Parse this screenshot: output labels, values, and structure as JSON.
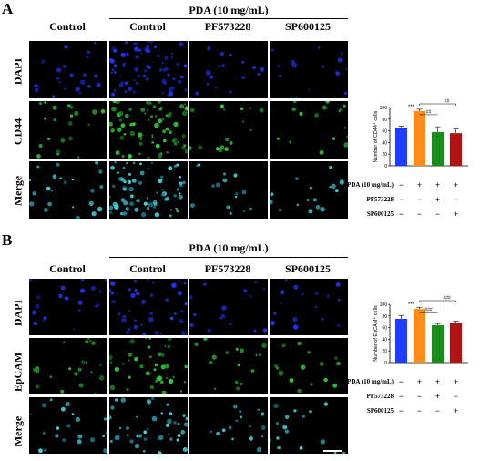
{
  "panels": [
    {
      "letter": "A",
      "group_title": "PDA (10 mg/mL)",
      "columns": [
        "Control",
        "Control",
        "PF573228",
        "SP600125"
      ],
      "rows": [
        "DAPI",
        "CD44",
        "Merge"
      ],
      "chart_data": {
        "type": "bar",
        "categories": [
          "Control",
          "PDA",
          "PDA + PF573228",
          "PDA + SP600125"
        ],
        "series": [
          {
            "values": [
              65,
              94,
              58,
              56
            ]
          }
        ],
        "errors": [
          3,
          3,
          9,
          7
        ],
        "ylabel": "Number of CD44⁺ cells",
        "ylim": [
          0,
          100
        ],
        "yticks": [
          0,
          20,
          40,
          60,
          80,
          100
        ],
        "colors": [
          "#1f3cff",
          "#ff8c1a",
          "#1a8c1a",
          "#b01414"
        ],
        "annotations": {
          "star": "***",
          "hash1": "##",
          "hash2": "##"
        },
        "conditions": [
          {
            "label": "PDA (10 mg/mL)",
            "signs": [
              "−",
              "+",
              "+",
              "+"
            ]
          },
          {
            "label": "PF573228",
            "signs": [
              "−",
              "−",
              "+",
              "−"
            ]
          },
          {
            "label": "SP600125",
            "signs": [
              "−",
              "−",
              "−",
              "+"
            ]
          }
        ]
      }
    },
    {
      "letter": "B",
      "group_title": "PDA (10 mg/mL)",
      "columns": [
        "Control",
        "Control",
        "PF573228",
        "SP600125"
      ],
      "rows": [
        "DAPI",
        "EpCAM",
        "Merge"
      ],
      "chart_data": {
        "type": "bar",
        "categories": [
          "Control",
          "PDA",
          "PDA + PF573228",
          "PDA + SP600125"
        ],
        "series": [
          {
            "values": [
              75,
              92,
              64,
              68
            ]
          }
        ],
        "errors": [
          6,
          3,
          3,
          3
        ],
        "ylabel": "Number of EpCAM⁺ cells",
        "ylim": [
          0,
          100
        ],
        "yticks": [
          0,
          20,
          40,
          60,
          80,
          100
        ],
        "colors": [
          "#1f3cff",
          "#ff8c1a",
          "#1a8c1a",
          "#b01414"
        ],
        "annotations": {
          "star": "***",
          "hash1": "###",
          "hash2": "###"
        },
        "conditions": [
          {
            "label": "PDA (10 mg/mL)",
            "signs": [
              "−",
              "+",
              "+",
              "+"
            ]
          },
          {
            "label": "PF573228",
            "signs": [
              "−",
              "−",
              "+",
              "−"
            ]
          },
          {
            "label": "SP600125",
            "signs": [
              "−",
              "−",
              "−",
              "+"
            ]
          }
        ]
      }
    }
  ]
}
